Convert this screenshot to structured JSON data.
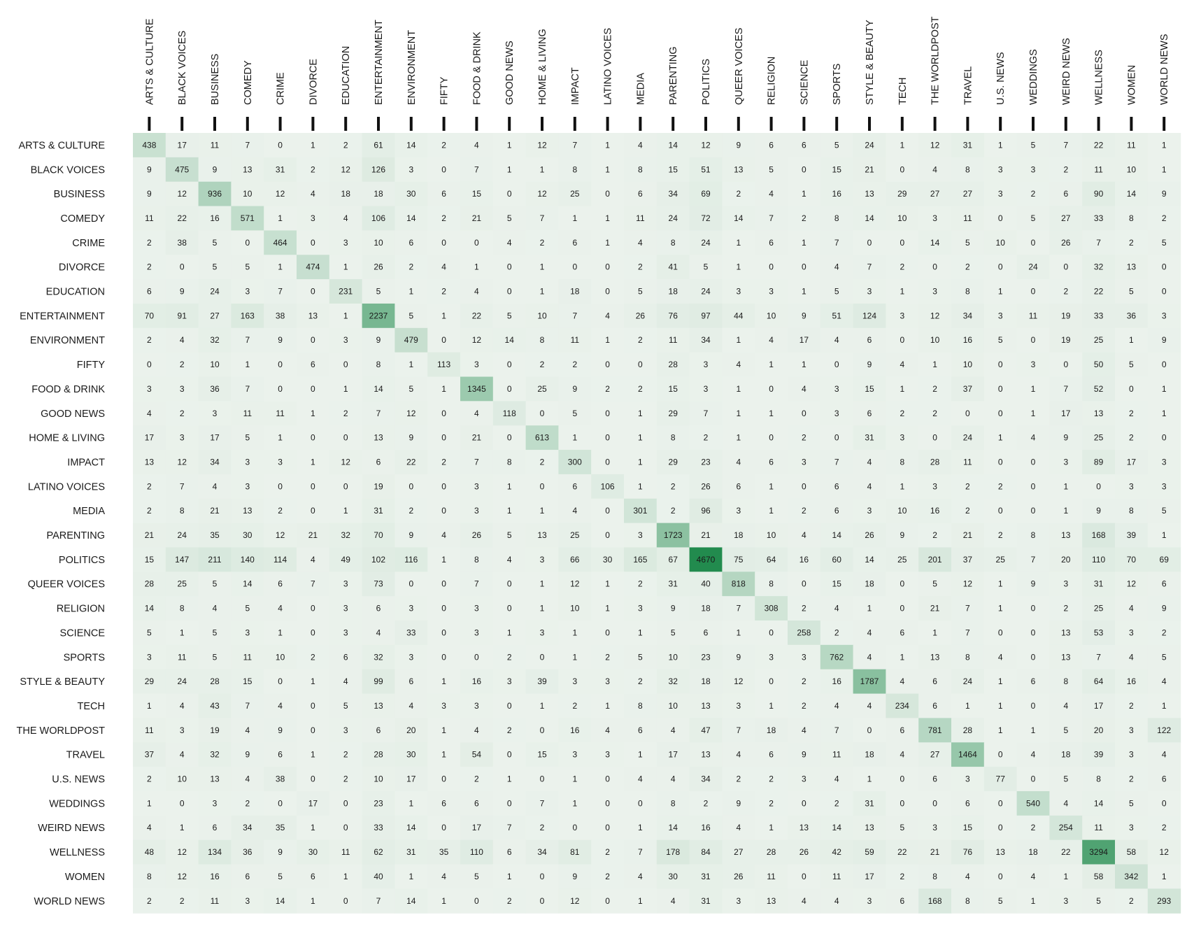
{
  "chart_data": {
    "type": "heatmap",
    "title": "",
    "xlabel": "",
    "ylabel": "",
    "categories": [
      "ARTS & CULTURE",
      "BLACK VOICES",
      "BUSINESS",
      "COMEDY",
      "CRIME",
      "DIVORCE",
      "EDUCATION",
      "ENTERTAINMENT",
      "ENVIRONMENT",
      "FIFTY",
      "FOOD & DRINK",
      "GOOD NEWS",
      "HOME & LIVING",
      "IMPACT",
      "LATINO VOICES",
      "MEDIA",
      "PARENTING",
      "POLITICS",
      "QUEER VOICES",
      "RELIGION",
      "SCIENCE",
      "SPORTS",
      "STYLE & BEAUTY",
      "TECH",
      "THE WORLDPOST",
      "TRAVEL",
      "U.S. NEWS",
      "WEDDINGS",
      "WEIRD NEWS",
      "WELLNESS",
      "WOMEN",
      "WORLD NEWS"
    ],
    "values": [
      [
        438,
        17,
        11,
        7,
        0,
        1,
        2,
        61,
        14,
        2,
        4,
        1,
        12,
        7,
        1,
        4,
        14,
        12,
        9,
        6,
        6,
        5,
        24,
        1,
        12,
        31,
        1,
        5,
        7,
        22,
        11,
        1
      ],
      [
        9,
        475,
        9,
        13,
        31,
        2,
        12,
        126,
        3,
        0,
        7,
        1,
        1,
        8,
        1,
        8,
        15,
        51,
        13,
        5,
        0,
        15,
        21,
        0,
        4,
        8,
        3,
        3,
        2,
        11,
        10,
        1
      ],
      [
        9,
        12,
        936,
        10,
        12,
        4,
        18,
        18,
        30,
        6,
        15,
        0,
        12,
        25,
        0,
        6,
        34,
        69,
        2,
        4,
        1,
        16,
        13,
        29,
        27,
        27,
        3,
        2,
        6,
        90,
        14,
        9
      ],
      [
        11,
        22,
        16,
        571,
        1,
        3,
        4,
        106,
        14,
        2,
        21,
        5,
        7,
        1,
        1,
        11,
        24,
        72,
        14,
        7,
        2,
        8,
        14,
        10,
        3,
        11,
        0,
        5,
        27,
        33,
        8,
        2
      ],
      [
        2,
        38,
        5,
        0,
        464,
        0,
        3,
        10,
        6,
        0,
        0,
        4,
        2,
        6,
        1,
        4,
        8,
        24,
        1,
        6,
        1,
        7,
        0,
        0,
        14,
        5,
        10,
        0,
        26,
        7,
        2,
        5
      ],
      [
        2,
        0,
        5,
        5,
        1,
        474,
        1,
        26,
        2,
        4,
        1,
        0,
        1,
        0,
        0,
        2,
        41,
        5,
        1,
        0,
        0,
        4,
        7,
        2,
        0,
        2,
        0,
        24,
        0,
        32,
        13,
        0
      ],
      [
        6,
        9,
        24,
        3,
        7,
        0,
        231,
        5,
        1,
        2,
        4,
        0,
        1,
        18,
        0,
        5,
        18,
        24,
        3,
        3,
        1,
        5,
        3,
        1,
        3,
        8,
        1,
        0,
        2,
        22,
        5,
        0
      ],
      [
        70,
        91,
        27,
        163,
        38,
        13,
        1,
        2237,
        5,
        1,
        22,
        5,
        10,
        7,
        4,
        26,
        76,
        97,
        44,
        10,
        9,
        51,
        124,
        3,
        12,
        34,
        3,
        11,
        19,
        33,
        36,
        3
      ],
      [
        2,
        4,
        32,
        7,
        9,
        0,
        3,
        9,
        479,
        0,
        12,
        14,
        8,
        11,
        1,
        2,
        11,
        34,
        1,
        4,
        17,
        4,
        6,
        0,
        10,
        16,
        5,
        0,
        19,
        25,
        1,
        9
      ],
      [
        0,
        2,
        10,
        1,
        0,
        6,
        0,
        8,
        1,
        113,
        3,
        0,
        2,
        2,
        0,
        0,
        28,
        3,
        4,
        1,
        1,
        0,
        9,
        4,
        1,
        10,
        0,
        3,
        0,
        50,
        5,
        0
      ],
      [
        3,
        3,
        36,
        7,
        0,
        0,
        1,
        14,
        5,
        1,
        1345,
        0,
        25,
        9,
        2,
        2,
        15,
        3,
        1,
        0,
        4,
        3,
        15,
        1,
        2,
        37,
        0,
        1,
        7,
        52,
        0,
        1
      ],
      [
        4,
        2,
        3,
        11,
        11,
        1,
        2,
        7,
        12,
        0,
        4,
        118,
        0,
        5,
        0,
        1,
        29,
        7,
        1,
        1,
        0,
        3,
        6,
        2,
        2,
        0,
        0,
        1,
        17,
        13,
        2,
        1
      ],
      [
        17,
        3,
        17,
        5,
        1,
        0,
        0,
        13,
        9,
        0,
        21,
        0,
        613,
        1,
        0,
        1,
        8,
        2,
        1,
        0,
        2,
        0,
        31,
        3,
        0,
        24,
        1,
        4,
        9,
        25,
        2,
        0
      ],
      [
        13,
        12,
        34,
        3,
        3,
        1,
        12,
        6,
        22,
        2,
        7,
        8,
        2,
        300,
        0,
        1,
        29,
        23,
        4,
        6,
        3,
        7,
        4,
        8,
        28,
        11,
        0,
        0,
        3,
        89,
        17,
        3
      ],
      [
        2,
        7,
        4,
        3,
        0,
        0,
        0,
        19,
        0,
        0,
        3,
        1,
        0,
        6,
        106,
        1,
        2,
        26,
        6,
        1,
        0,
        6,
        4,
        1,
        3,
        2,
        2,
        0,
        1,
        0,
        3,
        3
      ],
      [
        2,
        8,
        21,
        13,
        2,
        0,
        1,
        31,
        2,
        0,
        3,
        1,
        1,
        4,
        0,
        301,
        2,
        96,
        3,
        1,
        2,
        6,
        3,
        10,
        16,
        2,
        0,
        0,
        1,
        9,
        8,
        5
      ],
      [
        21,
        24,
        35,
        30,
        12,
        21,
        32,
        70,
        9,
        4,
        26,
        5,
        13,
        25,
        0,
        3,
        1723,
        21,
        18,
        10,
        4,
        14,
        26,
        9,
        2,
        21,
        2,
        8,
        13,
        168,
        39,
        1
      ],
      [
        15,
        147,
        211,
        140,
        114,
        4,
        49,
        102,
        116,
        1,
        8,
        4,
        3,
        66,
        30,
        165,
        67,
        4670,
        75,
        64,
        16,
        60,
        14,
        25,
        201,
        37,
        25,
        7,
        20,
        110,
        70,
        69
      ],
      [
        28,
        25,
        5,
        14,
        6,
        7,
        3,
        73,
        0,
        0,
        7,
        0,
        1,
        12,
        1,
        2,
        31,
        40,
        818,
        8,
        0,
        15,
        18,
        0,
        5,
        12,
        1,
        9,
        3,
        31,
        12,
        6
      ],
      [
        14,
        8,
        4,
        5,
        4,
        0,
        3,
        6,
        3,
        0,
        3,
        0,
        1,
        10,
        1,
        3,
        9,
        18,
        7,
        308,
        2,
        4,
        1,
        0,
        21,
        7,
        1,
        0,
        2,
        25,
        4,
        9
      ],
      [
        5,
        1,
        5,
        3,
        1,
        0,
        3,
        4,
        33,
        0,
        3,
        1,
        3,
        1,
        0,
        1,
        5,
        6,
        1,
        0,
        258,
        2,
        4,
        6,
        1,
        7,
        0,
        0,
        13,
        53,
        3,
        2
      ],
      [
        3,
        11,
        5,
        11,
        10,
        2,
        6,
        32,
        3,
        0,
        0,
        2,
        0,
        1,
        2,
        5,
        10,
        23,
        9,
        3,
        3,
        762,
        4,
        1,
        13,
        8,
        4,
        0,
        13,
        7,
        4,
        5
      ],
      [
        29,
        24,
        28,
        15,
        0,
        1,
        4,
        99,
        6,
        1,
        16,
        3,
        39,
        3,
        3,
        2,
        32,
        18,
        12,
        0,
        2,
        16,
        1787,
        4,
        6,
        24,
        1,
        6,
        8,
        64,
        16,
        4
      ],
      [
        1,
        4,
        43,
        7,
        4,
        0,
        5,
        13,
        4,
        3,
        3,
        0,
        1,
        2,
        1,
        8,
        10,
        13,
        3,
        1,
        2,
        4,
        4,
        234,
        6,
        1,
        1,
        0,
        4,
        17,
        2,
        1
      ],
      [
        11,
        3,
        19,
        4,
        9,
        0,
        3,
        6,
        20,
        1,
        4,
        2,
        0,
        16,
        4,
        6,
        4,
        47,
        7,
        18,
        4,
        7,
        0,
        6,
        781,
        28,
        1,
        1,
        5,
        20,
        3,
        122
      ],
      [
        37,
        4,
        32,
        9,
        6,
        1,
        2,
        28,
        30,
        1,
        54,
        0,
        15,
        3,
        3,
        1,
        17,
        13,
        4,
        6,
        9,
        11,
        18,
        4,
        27,
        1464,
        0,
        4,
        18,
        39,
        3,
        4
      ],
      [
        2,
        10,
        13,
        4,
        38,
        0,
        2,
        10,
        17,
        0,
        2,
        1,
        0,
        1,
        0,
        4,
        4,
        34,
        2,
        2,
        3,
        4,
        1,
        0,
        6,
        3,
        77,
        0,
        5,
        8,
        2,
        6
      ],
      [
        1,
        0,
        3,
        2,
        0,
        17,
        0,
        23,
        1,
        6,
        6,
        0,
        7,
        1,
        0,
        0,
        8,
        2,
        9,
        2,
        0,
        2,
        31,
        0,
        0,
        6,
        0,
        540,
        4,
        14,
        5,
        0
      ],
      [
        4,
        1,
        6,
        34,
        35,
        1,
        0,
        33,
        14,
        0,
        17,
        7,
        2,
        0,
        0,
        1,
        14,
        16,
        4,
        1,
        13,
        14,
        13,
        5,
        3,
        15,
        0,
        2,
        254,
        11,
        3,
        2
      ],
      [
        48,
        12,
        134,
        36,
        9,
        30,
        11,
        62,
        31,
        35,
        110,
        6,
        34,
        81,
        2,
        7,
        178,
        84,
        27,
        28,
        26,
        42,
        59,
        22,
        21,
        76,
        13,
        18,
        22,
        3294,
        58,
        12
      ],
      [
        8,
        12,
        16,
        6,
        5,
        6,
        1,
        40,
        1,
        4,
        5,
        1,
        0,
        9,
        2,
        4,
        30,
        31,
        26,
        11,
        0,
        11,
        17,
        2,
        8,
        4,
        0,
        4,
        1,
        58,
        342,
        1
      ],
      [
        2,
        2,
        11,
        3,
        14,
        1,
        0,
        7,
        14,
        1,
        0,
        2,
        0,
        12,
        0,
        1,
        4,
        31,
        3,
        13,
        4,
        4,
        3,
        6,
        168,
        8,
        5,
        1,
        3,
        5,
        2,
        293
      ]
    ],
    "vmin": 0,
    "vmax": 4670,
    "colormap": {
      "low": "#ebf2ec",
      "high": "#228b4e"
    },
    "grid": false,
    "legend": "none"
  }
}
